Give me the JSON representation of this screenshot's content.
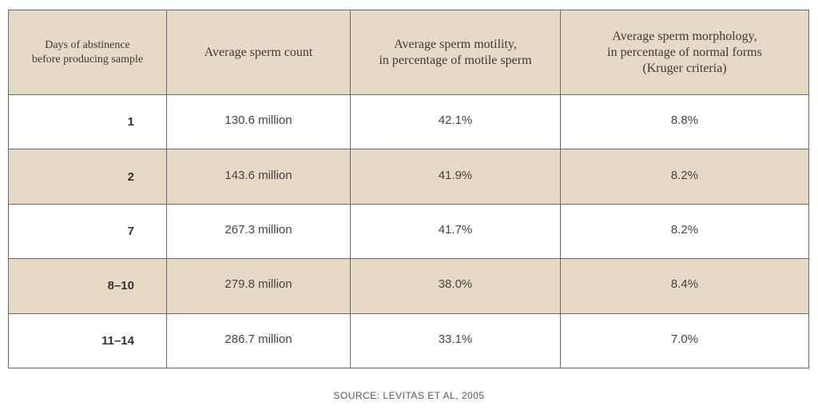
{
  "chart_data": {
    "type": "table",
    "columns": [
      "Days of abstinence\nbefore producing sample",
      "Average sperm count",
      "Average sperm motility,\nin percentage of motile sperm",
      "Average sperm morphology,\nin percentage of normal forms\n(Kruger criteria)"
    ],
    "rows": [
      [
        "1",
        "130.6 million",
        "42.1%",
        "8.8%"
      ],
      [
        "2",
        "143.6 million",
        "41.9%",
        "8.2%"
      ],
      [
        "7",
        "267.3 million",
        "41.7%",
        "8.2%"
      ],
      [
        "8–10",
        "279.8 million",
        "38.0%",
        "8.4%"
      ],
      [
        "11–14",
        "286.7 million",
        "33.1%",
        "7.0%"
      ]
    ],
    "source": "SOURCE: LEVITAS ET AL, 2005",
    "colors": {
      "header_bg": "#e6dac5",
      "alt_row_bg": "#e6dac5",
      "row_bg": "#ffffff",
      "border": "#6b6b6b"
    }
  }
}
